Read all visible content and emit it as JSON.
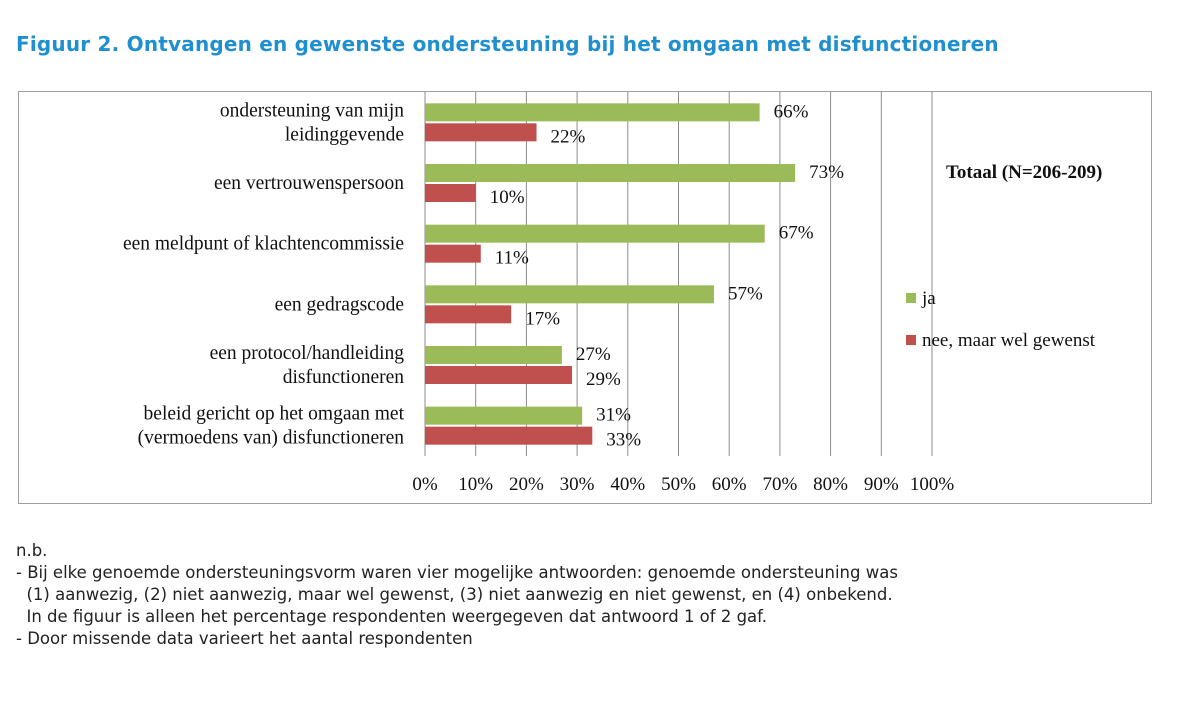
{
  "figure": {
    "title": "Figuur 2.  Ontvangen en gewenste ondersteuning bij het omgaan met disfunctioneren"
  },
  "chart_data": {
    "type": "bar",
    "orientation": "horizontal",
    "subtitle": "Totaal (N=206-209)",
    "categories": [
      [
        "ondersteuning van mijn",
        "leidinggevende"
      ],
      [
        "een vertrouwenspersoon"
      ],
      [
        "een meldpunt of klachtencommissie"
      ],
      [
        "een gedragscode"
      ],
      [
        "een protocol/handleiding",
        "disfunctioneren"
      ],
      [
        "beleid gericht op het omgaan met",
        "(vermoedens van) disfunctioneren"
      ]
    ],
    "series": [
      {
        "name": "ja",
        "color": "#9bbb59",
        "values": [
          66,
          73,
          67,
          57,
          27,
          31
        ],
        "labels": [
          "66%",
          "73%",
          "67%",
          "57%",
          "27%",
          "31%"
        ]
      },
      {
        "name": "nee, maar wel gewenst",
        "color": "#c0504d",
        "values": [
          22,
          10,
          11,
          17,
          29,
          33
        ],
        "labels": [
          "22%",
          "10%",
          "11%",
          "17%",
          "29%",
          "33%"
        ]
      }
    ],
    "xlim": [
      0,
      100
    ],
    "xticks": [
      "0%",
      "10%",
      "20%",
      "30%",
      "40%",
      "50%",
      "60%",
      "70%",
      "80%",
      "90%",
      "100%"
    ],
    "grid": true,
    "legend_position": "right"
  },
  "notes": {
    "heading": "n.b.",
    "lines": [
      "- Bij elke genoemde ondersteuningsvorm waren vier mogelijke antwoorden: genoemde ondersteuning was",
      "  (1) aanwezig, (2) niet aanwezig, maar wel gewenst, (3) niet aanwezig en niet gewenst, en (4) onbekend.",
      "  In de figuur is alleen het percentage respondenten weergegeven dat antwoord 1 of 2 gaf.",
      "- Door missende data varieert het aantal respondenten"
    ]
  }
}
